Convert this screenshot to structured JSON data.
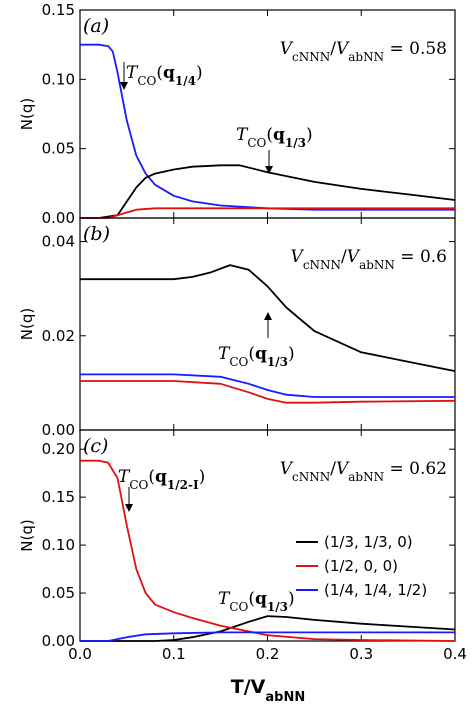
{
  "chart_data": [
    {
      "type": "line",
      "panel_label": "(a)",
      "ratio_text": "V_cNNN/V_abNN = 0.58",
      "ylabel": "N(q)",
      "xlabel": "",
      "ylim": [
        0,
        0.15
      ],
      "xlim": [
        0,
        0.4
      ],
      "yticks": [
        "0.00",
        "0.05",
        "0.10",
        "0.15"
      ],
      "ytick_values": [
        0,
        0.05,
        0.1,
        0.15
      ],
      "xticks": [],
      "series": [
        {
          "color": "#1a1aff",
          "x": [
            0.0,
            0.02,
            0.03,
            0.035,
            0.04,
            0.05,
            0.06,
            0.07,
            0.08,
            0.1,
            0.12,
            0.15,
            0.2,
            0.25,
            0.3,
            0.4
          ],
          "y": [
            0.125,
            0.125,
            0.124,
            0.12,
            0.105,
            0.07,
            0.045,
            0.032,
            0.024,
            0.016,
            0.012,
            0.009,
            0.007,
            0.006,
            0.006,
            0.006
          ]
        },
        {
          "color": "#000000",
          "x": [
            0.0,
            0.02,
            0.04,
            0.05,
            0.06,
            0.07,
            0.08,
            0.1,
            0.12,
            0.15,
            0.17,
            0.2,
            0.25,
            0.3,
            0.35,
            0.4
          ],
          "y": [
            0,
            0,
            0.002,
            0.012,
            0.022,
            0.029,
            0.032,
            0.035,
            0.037,
            0.038,
            0.038,
            0.033,
            0.026,
            0.021,
            0.017,
            0.013
          ]
        },
        {
          "color": "#e01010",
          "x": [
            0.0,
            0.03,
            0.05,
            0.06,
            0.08,
            0.1,
            0.15,
            0.2,
            0.3,
            0.4
          ],
          "y": [
            0,
            0,
            0.004,
            0.006,
            0.007,
            0.007,
            0.007,
            0.007,
            0.007,
            0.007
          ]
        }
      ],
      "annotations": [
        {
          "text": "T_CO(q_1/4)",
          "x": 0.052,
          "y": 0.128
        },
        {
          "text": "T_CO(q_1/3)",
          "x": 0.205,
          "y": 0.052
        }
      ]
    },
    {
      "type": "line",
      "panel_label": "(b)",
      "ratio_text": "V_cNNN/V_abNN = 0.6",
      "ylabel": "N(q)",
      "xlabel": "",
      "ylim": [
        0,
        0.045
      ],
      "xlim": [
        0,
        0.4
      ],
      "yticks": [
        "0.00",
        "0.02",
        "0.04"
      ],
      "ytick_values": [
        0,
        0.02,
        0.04
      ],
      "xticks": [],
      "series": [
        {
          "color": "#000000",
          "x": [
            0.0,
            0.05,
            0.1,
            0.12,
            0.14,
            0.16,
            0.18,
            0.2,
            0.22,
            0.25,
            0.3,
            0.35,
            0.4
          ],
          "y": [
            0.032,
            0.032,
            0.032,
            0.0325,
            0.0335,
            0.035,
            0.034,
            0.0305,
            0.026,
            0.021,
            0.0165,
            0.0145,
            0.0125
          ]
        },
        {
          "color": "#1a1aff",
          "x": [
            0.0,
            0.05,
            0.1,
            0.15,
            0.18,
            0.2,
            0.22,
            0.25,
            0.3,
            0.4
          ],
          "y": [
            0.0118,
            0.0118,
            0.0118,
            0.0113,
            0.0098,
            0.0085,
            0.0075,
            0.007,
            0.007,
            0.007
          ]
        },
        {
          "color": "#e01010",
          "x": [
            0.0,
            0.05,
            0.1,
            0.15,
            0.18,
            0.2,
            0.22,
            0.25,
            0.3,
            0.4
          ],
          "y": [
            0.0104,
            0.0104,
            0.0104,
            0.0098,
            0.008,
            0.0066,
            0.0058,
            0.0058,
            0.006,
            0.0062
          ]
        }
      ],
      "annotations": [
        {
          "text": "T_CO(q_1/3)",
          "x": 0.22,
          "y": 0.0115
        }
      ]
    },
    {
      "type": "line",
      "panel_label": "(c)",
      "ratio_text": "V_cNNN/V_abNN = 0.62",
      "ylabel": "N(q)",
      "xlabel": "T/V_abNN",
      "ylim": [
        0,
        0.22
      ],
      "xlim": [
        0,
        0.4
      ],
      "yticks": [
        "0.00",
        "0.05",
        "0.10",
        "0.15",
        "0.20"
      ],
      "ytick_values": [
        0,
        0.05,
        0.1,
        0.15,
        0.2
      ],
      "xticks": [
        "0.0",
        "0.1",
        "0.2",
        "0.3",
        "0.4"
      ],
      "xtick_values": [
        0,
        0.1,
        0.2,
        0.3,
        0.4
      ],
      "series": [
        {
          "name": "(1/3, 1/3, 0)",
          "color": "#000000",
          "x": [
            0.0,
            0.05,
            0.08,
            0.1,
            0.12,
            0.15,
            0.18,
            0.2,
            0.22,
            0.25,
            0.3,
            0.35,
            0.4
          ],
          "y": [
            0,
            0,
            0,
            0.001,
            0.004,
            0.01,
            0.02,
            0.026,
            0.025,
            0.022,
            0.018,
            0.015,
            0.012
          ]
        },
        {
          "name": "(1/2, 0, 0)",
          "color": "#e01010",
          "x": [
            0.0,
            0.02,
            0.03,
            0.04,
            0.05,
            0.06,
            0.07,
            0.08,
            0.1,
            0.12,
            0.15,
            0.18,
            0.2,
            0.25,
            0.3,
            0.4
          ],
          "y": [
            0.188,
            0.188,
            0.186,
            0.17,
            0.12,
            0.075,
            0.05,
            0.038,
            0.03,
            0.024,
            0.016,
            0.01,
            0.006,
            0.002,
            0.001,
            0
          ]
        },
        {
          "name": "(1/4, 1/4, 1/2)",
          "color": "#1a1aff",
          "x": [
            0.0,
            0.03,
            0.05,
            0.07,
            0.1,
            0.15,
            0.2,
            0.3,
            0.4
          ],
          "y": [
            0,
            0,
            0.004,
            0.007,
            0.008,
            0.009,
            0.009,
            0.009,
            0.009
          ]
        }
      ],
      "annotations": [
        {
          "text": "T_CO(q_1/2-I)",
          "x": 0.05,
          "y": 0.195
        },
        {
          "text": "T_CO(q_1/3)",
          "x": 0.2,
          "y": 0.038
        }
      ],
      "legend_location": "right"
    }
  ]
}
